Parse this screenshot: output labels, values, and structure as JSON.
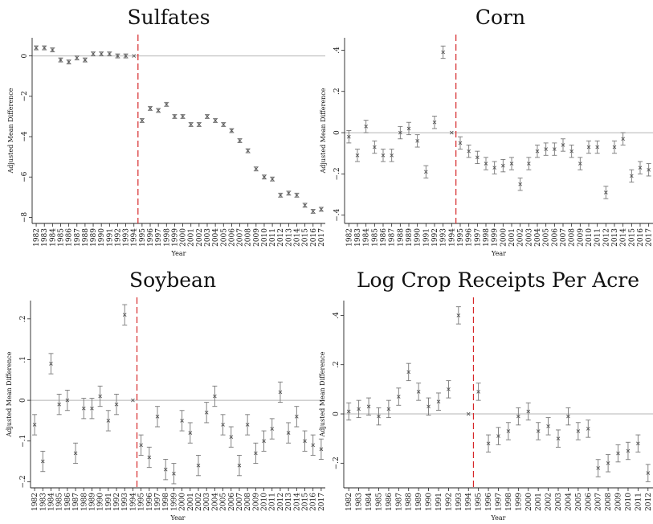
{
  "chart_data": [
    {
      "type": "scatter",
      "title": "Sulfates",
      "xlabel": "Year",
      "ylabel": "Adjusted Mean Difference",
      "x": [
        1982,
        1983,
        1984,
        1985,
        1986,
        1987,
        1988,
        1989,
        1990,
        1991,
        1992,
        1993,
        1994,
        1995,
        1996,
        1997,
        1998,
        1999,
        2000,
        2001,
        2002,
        2003,
        2004,
        2005,
        2006,
        2007,
        2008,
        2009,
        2010,
        2011,
        2012,
        2013,
        2014,
        2015,
        2016,
        2017
      ],
      "y": [
        0.4,
        0.4,
        0.3,
        -0.2,
        -0.3,
        -0.1,
        -0.2,
        0.1,
        0.1,
        0.1,
        0.0,
        0.0,
        0.0,
        -3.2,
        -2.6,
        -2.7,
        -2.4,
        -3.0,
        -3.0,
        -3.4,
        -3.4,
        -3.0,
        -3.2,
        -3.4,
        -3.7,
        -4.2,
        -4.7,
        -5.6,
        -6.0,
        -6.1,
        -6.9,
        -6.8,
        -6.9,
        -7.4,
        -7.7,
        -7.6
      ],
      "ci": [
        0.1,
        0.1,
        0.1,
        0.1,
        0.1,
        0.1,
        0.1,
        0.1,
        0.1,
        0.1,
        0.1,
        0.1,
        0.0,
        0.1,
        0.1,
        0.1,
        0.1,
        0.1,
        0.1,
        0.1,
        0.1,
        0.1,
        0.1,
        0.1,
        0.1,
        0.1,
        0.1,
        0.1,
        0.1,
        0.1,
        0.1,
        0.1,
        0.1,
        0.1,
        0.1,
        0.1
      ],
      "yticks": [
        0,
        -2,
        -4,
        -6,
        -8
      ],
      "ylim": [
        -8.3,
        0.9
      ],
      "xlim": [
        1981.5,
        2017.5
      ],
      "policy_line_x": 1994.5,
      "reference_line_y": 0
    },
    {
      "type": "scatter",
      "title": "Corn",
      "xlabel": "Year",
      "ylabel": "Adjusted Mean Difference",
      "x": [
        1982,
        1983,
        1984,
        1985,
        1986,
        1987,
        1988,
        1989,
        1990,
        1991,
        1992,
        1993,
        1994,
        1995,
        1996,
        1997,
        1998,
        1999,
        2000,
        2001,
        2002,
        2003,
        2004,
        2005,
        2006,
        2007,
        2008,
        2009,
        2010,
        2011,
        2012,
        2013,
        2014,
        2015,
        2016,
        2017
      ],
      "y": [
        -0.02,
        -0.11,
        0.03,
        -0.07,
        -0.11,
        -0.11,
        0.0,
        0.02,
        -0.04,
        -0.19,
        0.05,
        0.39,
        0.0,
        -0.05,
        -0.09,
        -0.12,
        -0.15,
        -0.17,
        -0.16,
        -0.15,
        -0.25,
        -0.15,
        -0.09,
        -0.08,
        -0.08,
        -0.06,
        -0.09,
        -0.15,
        -0.07,
        -0.07,
        -0.29,
        -0.07,
        -0.03,
        -0.21,
        -0.17,
        -0.18
      ],
      "ci": [
        0.03,
        0.03,
        0.03,
        0.03,
        0.03,
        0.03,
        0.03,
        0.03,
        0.03,
        0.03,
        0.03,
        0.03,
        0.0,
        0.03,
        0.03,
        0.03,
        0.03,
        0.03,
        0.03,
        0.03,
        0.03,
        0.03,
        0.03,
        0.03,
        0.03,
        0.03,
        0.03,
        0.03,
        0.03,
        0.03,
        0.03,
        0.03,
        0.03,
        0.03,
        0.03,
        0.03
      ],
      "yticks": [
        0.4,
        0.2,
        0,
        -0.2,
        -0.4
      ],
      "tick_labels": [
        ".4",
        ".2",
        "0",
        "−.2",
        "−.4"
      ],
      "ylim": [
        -0.44,
        0.46
      ],
      "xlim": [
        1981.5,
        2017.5
      ],
      "policy_line_x": 1994.5,
      "reference_line_y": 0
    },
    {
      "type": "scatter",
      "title": "Soybean",
      "xlabel": "Year",
      "ylabel": "Adjusted Mean Difference",
      "x": [
        1982,
        1983,
        1984,
        1985,
        1986,
        1987,
        1988,
        1989,
        1990,
        1991,
        1992,
        1993,
        1994,
        1995,
        1996,
        1997,
        1998,
        1999,
        2000,
        2001,
        2002,
        2003,
        2004,
        2005,
        2006,
        2007,
        2008,
        2009,
        2010,
        2011,
        2012,
        2013,
        2014,
        2015,
        2016,
        2017
      ],
      "y": [
        -0.06,
        -0.15,
        0.09,
        -0.01,
        0.0,
        -0.13,
        -0.02,
        -0.02,
        0.01,
        -0.05,
        -0.01,
        0.21,
        0.0,
        -0.11,
        -0.14,
        -0.04,
        -0.17,
        -0.18,
        -0.05,
        -0.08,
        -0.16,
        -0.03,
        0.01,
        -0.06,
        -0.09,
        -0.16,
        -0.06,
        -0.13,
        -0.1,
        -0.07,
        0.02,
        -0.08,
        -0.04,
        -0.1,
        -0.11,
        -0.12
      ],
      "ci": [
        0.025,
        0.025,
        0.025,
        0.025,
        0.025,
        0.025,
        0.025,
        0.025,
        0.025,
        0.025,
        0.025,
        0.025,
        0.0,
        0.025,
        0.025,
        0.025,
        0.025,
        0.025,
        0.025,
        0.025,
        0.025,
        0.025,
        0.025,
        0.025,
        0.025,
        0.025,
        0.025,
        0.025,
        0.025,
        0.025,
        0.025,
        0.025,
        0.025,
        0.025,
        0.025,
        0.025
      ],
      "yticks": [
        0.2,
        0.1,
        0,
        -0.1,
        -0.2
      ],
      "tick_labels": [
        ".2",
        ".1",
        "0",
        "−.1",
        "−.2"
      ],
      "ylim": [
        -0.215,
        0.245
      ],
      "xlim": [
        1981.5,
        2017.5
      ],
      "policy_line_x": 1994.5,
      "reference_line_y": 0
    },
    {
      "type": "scatter",
      "title": "Log Crop Receipts Per Acre",
      "xlabel": "Year",
      "ylabel": "Adjusted Mean Difference",
      "x": [
        1982,
        1983,
        1984,
        1985,
        1986,
        1987,
        1988,
        1989,
        1990,
        1991,
        1992,
        1993,
        1994,
        1995,
        1996,
        1997,
        1998,
        1999,
        2000,
        2001,
        2002,
        2003,
        2004,
        2005,
        2006,
        2007,
        2008,
        2009,
        2010,
        2011,
        2012
      ],
      "y": [
        0.01,
        0.02,
        0.03,
        -0.01,
        0.02,
        0.07,
        0.17,
        0.09,
        0.03,
        0.05,
        0.1,
        0.4,
        0.0,
        0.09,
        -0.12,
        -0.09,
        -0.07,
        -0.01,
        0.01,
        -0.07,
        -0.05,
        -0.1,
        -0.01,
        -0.07,
        -0.06,
        -0.22,
        -0.2,
        -0.16,
        -0.15,
        -0.12,
        -0.24
      ],
      "ci": [
        0.035,
        0.035,
        0.035,
        0.035,
        0.035,
        0.035,
        0.035,
        0.035,
        0.035,
        0.035,
        0.035,
        0.035,
        0.0,
        0.035,
        0.035,
        0.035,
        0.035,
        0.035,
        0.035,
        0.035,
        0.035,
        0.035,
        0.035,
        0.035,
        0.035,
        0.035,
        0.035,
        0.035,
        0.035,
        0.035,
        0.035
      ],
      "yticks": [
        0.4,
        0.2,
        0,
        -0.2
      ],
      "tick_labels": [
        ".4",
        ".2",
        "0",
        "−.2"
      ],
      "ylim": [
        -0.3,
        0.46
      ],
      "xlim": [
        1981.5,
        2012.5
      ],
      "policy_line_x": 1994.5,
      "reference_line_y": 0
    }
  ]
}
